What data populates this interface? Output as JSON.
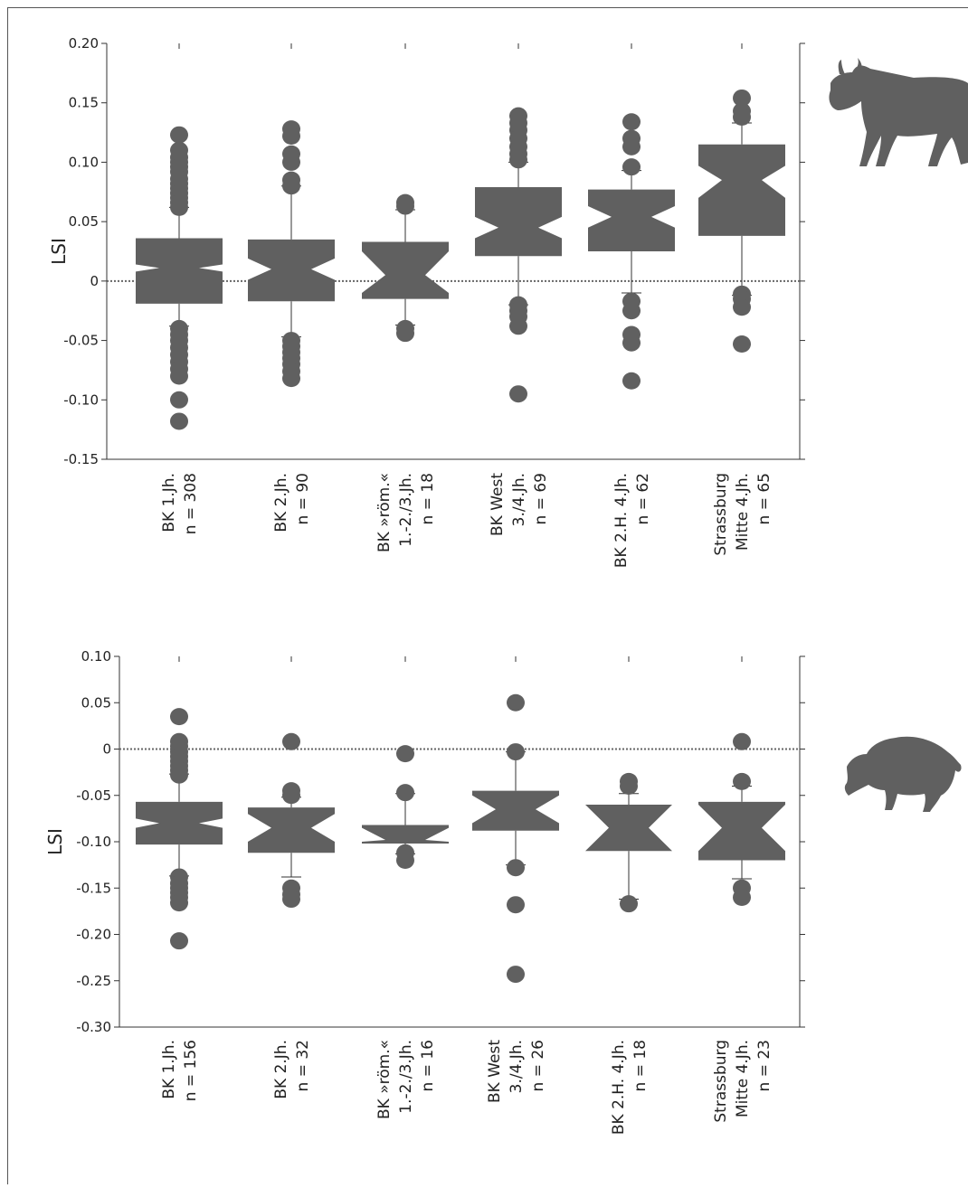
{
  "colors": {
    "mark": "#606060",
    "axis": "#333333",
    "zero_line": "#666666",
    "frame": "#555555"
  },
  "chart_data": [
    {
      "type": "boxplot",
      "animal_icon": "cow-icon",
      "ylabel": "LSI",
      "ylim": [
        -0.15,
        0.2
      ],
      "yticks": [
        0.2,
        0.15,
        0.1,
        0.05,
        0,
        -0.05,
        -0.1,
        -0.15
      ],
      "ytick_labels": [
        "0.20",
        "0.15",
        "0.10",
        "0.05",
        "0",
        "-0.05",
        "-0.10",
        "-0.15"
      ],
      "reference_line": 0,
      "grid": false,
      "groups": [
        {
          "label_lines": [
            "BK 1.Jh.",
            "n = 308"
          ],
          "whisker_low": -0.038,
          "q1": -0.019,
          "median": 0.011,
          "q3": 0.036,
          "whisker_high": 0.062,
          "notch_low": 0.008,
          "notch_high": 0.014,
          "outliers": [
            0.123,
            0.11,
            0.104,
            0.1,
            0.096,
            0.092,
            0.086,
            0.082,
            0.078,
            0.074,
            0.07,
            0.066,
            0.062,
            -0.04,
            -0.045,
            -0.05,
            -0.056,
            -0.062,
            -0.068,
            -0.074,
            -0.08,
            -0.1,
            -0.118
          ]
        },
        {
          "label_lines": [
            "BK 2.Jh.",
            "n = 90"
          ],
          "whisker_low": -0.047,
          "q1": -0.017,
          "median": 0.01,
          "q3": 0.035,
          "whisker_high": 0.08,
          "notch_low": 0.001,
          "notch_high": 0.019,
          "outliers": [
            0.128,
            0.122,
            0.107,
            0.1,
            0.085,
            0.08,
            -0.05,
            -0.055,
            -0.06,
            -0.065,
            -0.07,
            -0.076,
            -0.082
          ]
        },
        {
          "label_lines": [
            "BK »röm.«",
            "1.-2./3.Jh.",
            "n = 18"
          ],
          "whisker_low": -0.037,
          "q1": -0.015,
          "median": 0.005,
          "q3": 0.033,
          "whisker_high": 0.06,
          "notch_low": -0.01,
          "notch_high": 0.025,
          "outliers": [
            0.066,
            0.063,
            -0.04,
            -0.044
          ]
        },
        {
          "label_lines": [
            "BK West",
            "3./4.Jh.",
            "n = 69"
          ],
          "whisker_low": -0.02,
          "q1": 0.021,
          "median": 0.045,
          "q3": 0.079,
          "whisker_high": 0.1,
          "notch_low": 0.036,
          "notch_high": 0.054,
          "outliers": [
            0.139,
            0.133,
            0.127,
            0.12,
            0.113,
            0.107,
            0.102,
            -0.02,
            -0.025,
            -0.03,
            -0.038,
            -0.095
          ]
        },
        {
          "label_lines": [
            "BK 2.H. 4.Jh.",
            "n = 62"
          ],
          "whisker_low": -0.01,
          "q1": 0.025,
          "median": 0.054,
          "q3": 0.077,
          "whisker_high": 0.093,
          "notch_low": 0.045,
          "notch_high": 0.063,
          "outliers": [
            0.134,
            0.12,
            0.113,
            0.096,
            -0.017,
            -0.025,
            -0.045,
            -0.052,
            -0.084
          ]
        },
        {
          "label_lines": [
            "Strassburg",
            "Mitte 4.Jh.",
            "n = 65"
          ],
          "whisker_low": -0.012,
          "q1": 0.038,
          "median": 0.085,
          "q3": 0.115,
          "whisker_high": 0.133,
          "notch_low": 0.07,
          "notch_high": 0.097,
          "outliers": [
            0.154,
            0.143,
            0.138,
            -0.011,
            -0.015,
            -0.022,
            -0.053
          ]
        }
      ]
    },
    {
      "type": "boxplot",
      "animal_icon": "pig-icon",
      "ylabel": "LSI",
      "ylim": [
        -0.3,
        0.1
      ],
      "yticks": [
        0.1,
        0.05,
        0,
        -0.05,
        -0.1,
        -0.15,
        -0.2,
        -0.25,
        -0.3
      ],
      "ytick_labels": [
        "0.10",
        "0.05",
        "0",
        "-0.05",
        "-0.10",
        "-0.15",
        "-0.20",
        "-0.25",
        "-0.30"
      ],
      "reference_line": 0,
      "grid": false,
      "groups": [
        {
          "label_lines": [
            "BK 1.Jh.",
            "n = 156"
          ],
          "whisker_low": -0.137,
          "q1": -0.103,
          "median": -0.08,
          "q3": -0.057,
          "whisker_high": -0.027,
          "notch_low": -0.085,
          "notch_high": -0.075,
          "outliers": [
            0.035,
            0.008,
            0.003,
            -0.003,
            -0.008,
            -0.013,
            -0.018,
            -0.023,
            -0.028,
            -0.138,
            -0.145,
            -0.15,
            -0.155,
            -0.16,
            -0.166,
            -0.207
          ]
        },
        {
          "label_lines": [
            "BK 2.Jh.",
            "n = 32"
          ],
          "whisker_low": -0.138,
          "q1": -0.112,
          "median": -0.085,
          "q3": -0.063,
          "whisker_high": -0.052,
          "notch_low": -0.1,
          "notch_high": -0.07,
          "outliers": [
            0.008,
            -0.045,
            -0.05,
            -0.15,
            -0.157,
            -0.162
          ]
        },
        {
          "label_lines": [
            "BK »röm.«",
            "1.-2./3.Jh.",
            "n = 16"
          ],
          "whisker_low": -0.113,
          "q1": -0.102,
          "median": -0.098,
          "q3": -0.082,
          "whisker_high": -0.048,
          "notch_low": -0.1,
          "notch_high": -0.085,
          "outliers": [
            -0.005,
            -0.047,
            -0.112,
            -0.12
          ]
        },
        {
          "label_lines": [
            "BK West",
            "3./4.Jh.",
            "n = 26"
          ],
          "whisker_low": -0.125,
          "q1": -0.088,
          "median": -0.065,
          "q3": -0.045,
          "whisker_high": -0.003,
          "notch_low": -0.08,
          "notch_high": -0.05,
          "outliers": [
            0.05,
            -0.003,
            -0.128,
            -0.168,
            -0.243
          ]
        },
        {
          "label_lines": [
            "BK 2.H. 4.Jh.",
            "n = 18"
          ],
          "whisker_low": -0.162,
          "q1": -0.11,
          "median": -0.085,
          "q3": -0.06,
          "whisker_high": -0.048,
          "notch_low": -0.11,
          "notch_high": -0.06,
          "outliers": [
            -0.035,
            -0.04,
            -0.167
          ]
        },
        {
          "label_lines": [
            "Strassburg",
            "Mitte  4.Jh.",
            "n = 23"
          ],
          "whisker_low": -0.14,
          "q1": -0.12,
          "median": -0.085,
          "q3": -0.057,
          "whisker_high": -0.04,
          "notch_low": -0.11,
          "notch_high": -0.06,
          "outliers": [
            0.008,
            -0.035,
            -0.15,
            -0.16
          ]
        }
      ]
    }
  ]
}
